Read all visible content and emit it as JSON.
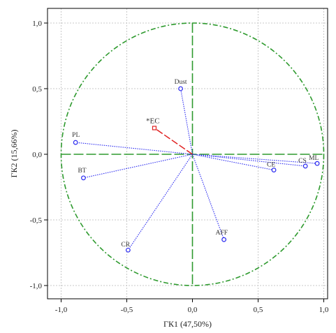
{
  "chart_data": {
    "type": "scatter",
    "title": "",
    "xlabel": "ГК1 (47,50%)",
    "ylabel": "ГК2 (15,66%)",
    "xlim": [
      -1.1,
      1.1
    ],
    "ylim": [
      -1.1,
      1.1
    ],
    "xticks": [
      "-1,0",
      "-0,5",
      "0,0",
      "0,5",
      "1,0"
    ],
    "yticks": [
      "1,0",
      "0,5",
      "0,0",
      "-0,5",
      "-1,0"
    ],
    "grid": true,
    "unit_circle": true,
    "colors": {
      "active": "#2a2af0",
      "supplementary": "#e02020",
      "circle": "#2e9a2e",
      "axes": "#2e9a2e",
      "grid": "#c8c8c8",
      "frame": "#000000"
    },
    "active_variables": [
      {
        "label": "Dust",
        "x": -0.09,
        "y": 0.5
      },
      {
        "label": "PL",
        "x": -0.89,
        "y": 0.09
      },
      {
        "label": "BT",
        "x": -0.83,
        "y": -0.18
      },
      {
        "label": "CR",
        "x": -0.49,
        "y": -0.73
      },
      {
        "label": "AFF",
        "x": 0.24,
        "y": -0.65
      },
      {
        "label": "CE",
        "x": 0.62,
        "y": -0.12
      },
      {
        "label": "CS",
        "x": 0.86,
        "y": -0.09
      },
      {
        "label": "ML",
        "x": 0.95,
        "y": -0.07
      }
    ],
    "supplementary_variables": [
      {
        "label": "*EC",
        "x": -0.29,
        "y": 0.2
      }
    ]
  }
}
